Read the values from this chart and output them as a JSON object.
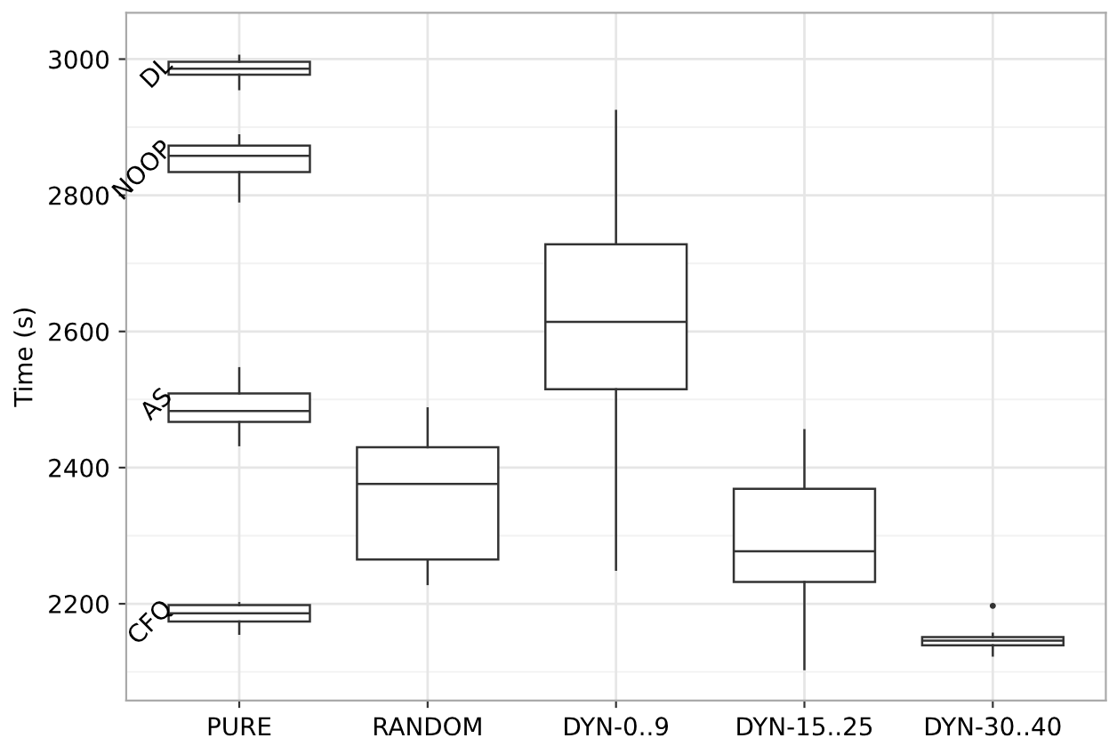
{
  "chart_data": {
    "type": "box",
    "ylabel": "Time (s)",
    "categories": [
      "PURE",
      "RANDOM",
      "DYN-0..9",
      "DYN-15..25",
      "DYN-30..40"
    ],
    "series": [
      {
        "name": "DL",
        "color": "#333333",
        "boxes": [
          {
            "low": 2956,
            "q1": 2977,
            "median": 2986,
            "q3": 2996,
            "high": 3005
          },
          null,
          null,
          null,
          null
        ]
      },
      {
        "name": "NOOP",
        "color": "#333333",
        "boxes": [
          {
            "low": 2791,
            "q1": 2834,
            "median": 2858,
            "q3": 2873,
            "high": 2888
          },
          null,
          null,
          null,
          null
        ]
      },
      {
        "name": "AS",
        "color": "#333333",
        "boxes": [
          {
            "low": 2433,
            "q1": 2467,
            "median": 2483,
            "q3": 2509,
            "high": 2546
          },
          null,
          null,
          null,
          null
        ]
      },
      {
        "name": "CFQ",
        "color": "#333333",
        "boxes": [
          {
            "low": 2156,
            "q1": 2174,
            "median": 2186,
            "q3": 2198,
            "high": 2201
          },
          null,
          null,
          null,
          null
        ]
      },
      {
        "color": "#333333",
        "boxes": [
          null,
          {
            "low": 2229,
            "q1": 2265,
            "median": 2376,
            "q3": 2430,
            "high": 2487
          },
          {
            "low": 2250,
            "q1": 2515,
            "median": 2614,
            "q3": 2728,
            "high": 2924
          },
          {
            "low": 2104,
            "q1": 2232,
            "median": 2277,
            "q3": 2369,
            "high": 2455
          },
          {
            "low": 2124,
            "q1": 2139,
            "median": 2146,
            "q3": 2151,
            "high": 2156,
            "outliers": [
              2197
            ]
          }
        ]
      }
    ],
    "ylim": [
      2058,
      3068
    ],
    "yticks": [
      2200,
      2400,
      2600,
      2800,
      3000
    ],
    "grid": true
  }
}
